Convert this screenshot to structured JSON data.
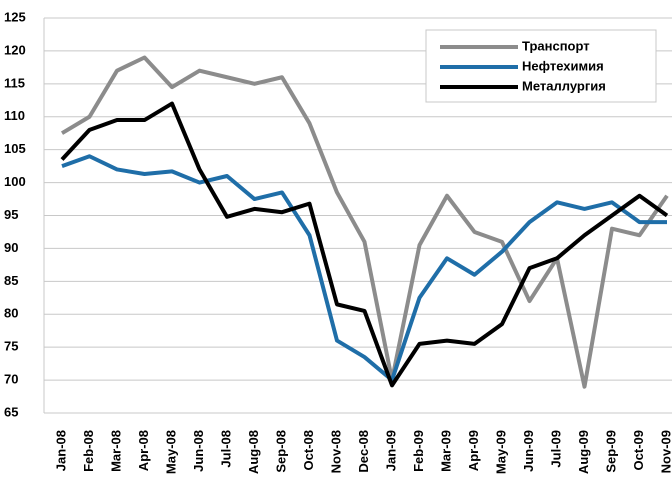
{
  "chart_data": {
    "type": "line",
    "categories": [
      "Jan-08",
      "Feb-08",
      "Mar-08",
      "Apr-08",
      "May-08",
      "Jun-08",
      "Jul-08",
      "Aug-08",
      "Sep-08",
      "Oct-08",
      "Nov-08",
      "Dec-08",
      "Jan-09",
      "Feb-09",
      "Mar-09",
      "Apr-09",
      "May-09",
      "Jun-09",
      "Jul-09",
      "Aug-09",
      "Sep-09",
      "Oct-09",
      "Nov-09"
    ],
    "series": [
      {
        "name": "Транспорт",
        "color": "#8c8c8c",
        "values": [
          107.5,
          110,
          117,
          119,
          114.5,
          117,
          116,
          115,
          116,
          109,
          98.5,
          91,
          70,
          90.5,
          98,
          92.5,
          91,
          82,
          88.5,
          69,
          93,
          92,
          98
        ]
      },
      {
        "name": "Нефтехимия",
        "color": "#1f6ea8",
        "values": [
          102.5,
          104,
          102,
          101.3,
          101.7,
          100,
          101,
          97.5,
          98.5,
          92,
          76,
          73.5,
          70,
          82.5,
          88.5,
          86,
          89.5,
          94,
          97,
          96,
          97,
          94,
          94
        ]
      },
      {
        "name": "Металлургия",
        "color": "#000000",
        "values": [
          103.5,
          108,
          109.5,
          109.5,
          112,
          102,
          94.8,
          96,
          95.5,
          96.8,
          81.5,
          80.5,
          69.2,
          75.5,
          76,
          75.5,
          78.5,
          87,
          88.5,
          92,
          95,
          98,
          95
        ]
      }
    ],
    "ylim": [
      65,
      125
    ],
    "yticks": [
      65,
      70,
      75,
      80,
      85,
      90,
      95,
      100,
      105,
      110,
      115,
      120,
      125
    ],
    "grid": true,
    "legend": "upper right"
  }
}
